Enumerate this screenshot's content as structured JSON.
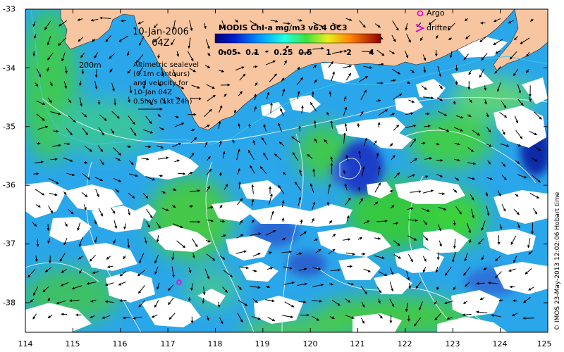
{
  "map": {
    "date_line1": "10-Jan-2006",
    "date_line2": "04Z",
    "colorbar_title": "MODIS Chl-a mg/m3 v6.4 OC3",
    "colorbar_ticks": [
      "0.05",
      "0.1",
      "0.25",
      "0.5",
      "1",
      "2",
      "4"
    ],
    "contour_scale_label": "200m",
    "note_lines": [
      "Altimetric sealevel",
      "(0.1m contours)",
      "and velocity for",
      "10-Jan 04Z",
      "0.5m/s (1kt 24h)"
    ],
    "legend_argo": "Argo",
    "legend_drifter": "drifter",
    "credit": "© IMOS 23-May-2013 12:02:06 Hobart time",
    "x_ticks": [
      "114",
      "115",
      "116",
      "117",
      "118",
      "119",
      "120",
      "121",
      "122",
      "123",
      "124",
      "125"
    ],
    "y_ticks": [
      "-33",
      "-34",
      "-35",
      "-36",
      "-37",
      "-38"
    ],
    "colors": {
      "land": "#f7c59f",
      "cloud": "#ffffff",
      "ocean_low": "#1a3dc8",
      "ocean_mid": "#23a7ee",
      "ocean_high": "#3ad23a",
      "argo_marker": "#e000e0",
      "isobath": "#40c8e8"
    }
  }
}
